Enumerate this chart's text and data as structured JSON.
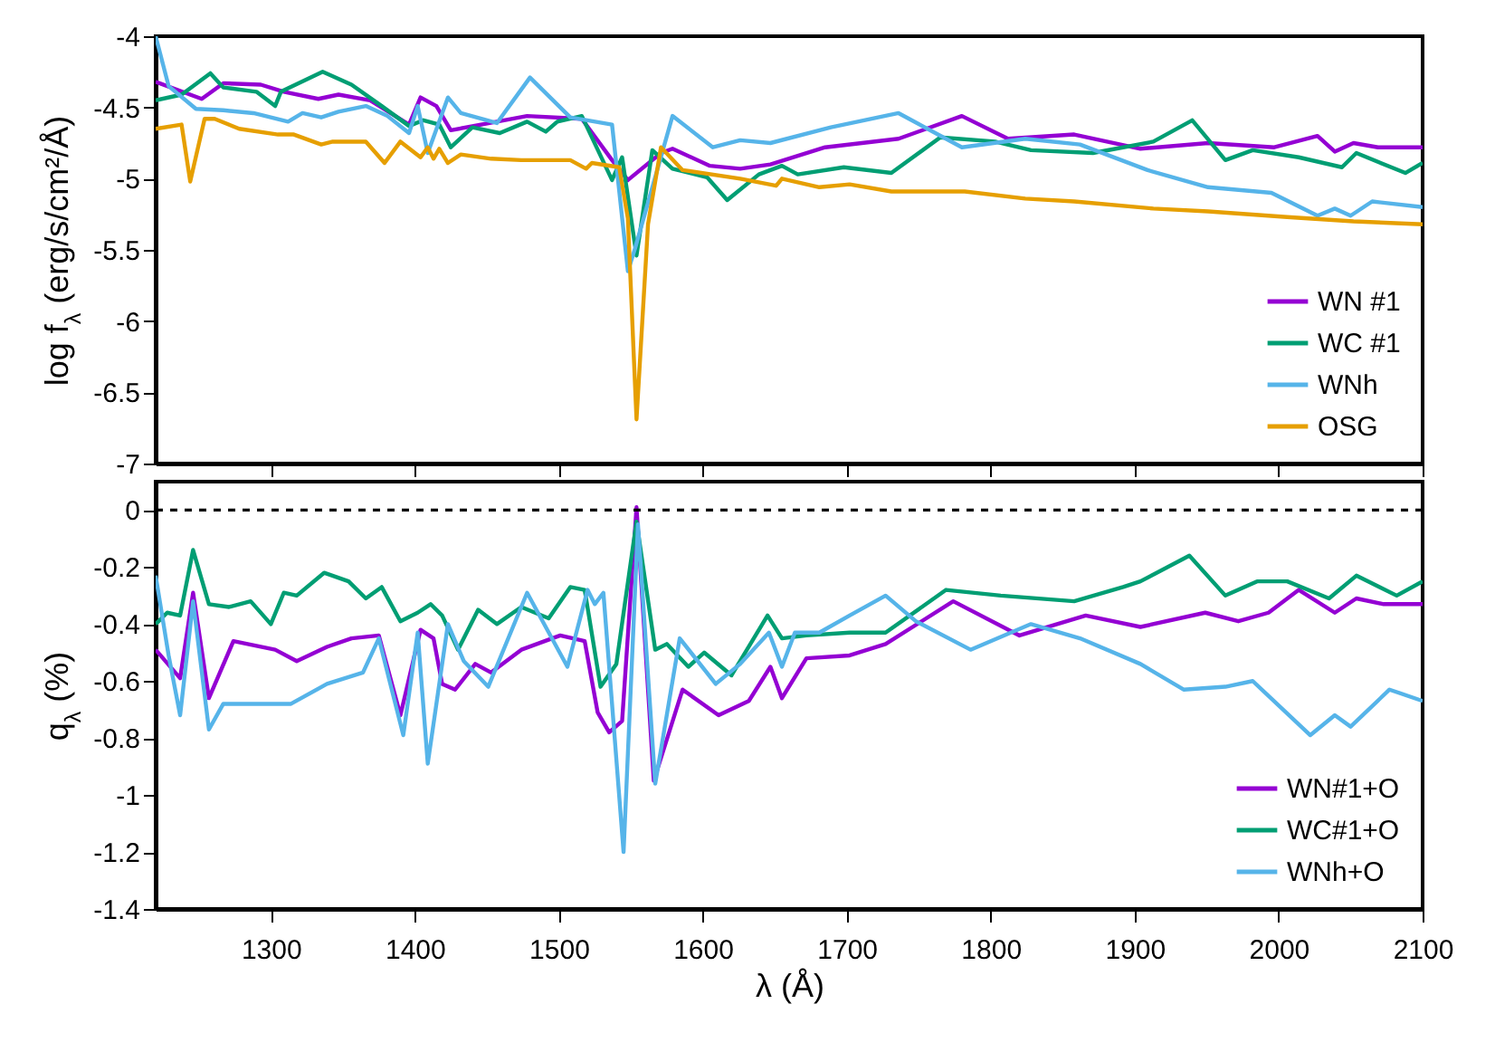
{
  "chart_data": [
    {
      "type": "line",
      "ylabel": "log f$_{λ}$ (erg/s/cm²/Å)",
      "xlim": [
        1220,
        2100
      ],
      "xticks": [
        1300,
        1400,
        1500,
        1600,
        1700,
        1800,
        1900,
        2000,
        2100
      ],
      "ylim": [
        -7,
        -4
      ],
      "yticks": [
        -7,
        -6.5,
        -6,
        -5.5,
        -5,
        -4.5,
        -4
      ],
      "tick_labels": "y",
      "grid": false,
      "legend": "bottom right",
      "line_style": "solid",
      "series": [
        {
          "name": "WN #1",
          "color": "#9400d3",
          "x": [
            1220,
            1252,
            1267,
            1293,
            1309,
            1333,
            1347,
            1369,
            1396,
            1404,
            1415,
            1425,
            1457,
            1478,
            1516,
            1537,
            1548,
            1571,
            1579,
            1605,
            1626,
            1647,
            1685,
            1736,
            1780,
            1812,
            1858,
            1904,
            1951,
            1997,
            2027,
            2039,
            2052,
            2069,
            2100
          ],
          "values": [
            -4.32,
            -4.44,
            -4.33,
            -4.34,
            -4.39,
            -4.44,
            -4.41,
            -4.45,
            -4.62,
            -4.43,
            -4.49,
            -4.66,
            -4.6,
            -4.56,
            -4.58,
            -4.87,
            -5.01,
            -4.82,
            -4.79,
            -4.91,
            -4.93,
            -4.9,
            -4.78,
            -4.72,
            -4.56,
            -4.72,
            -4.69,
            -4.79,
            -4.75,
            -4.78,
            -4.7,
            -4.81,
            -4.75,
            -4.78,
            -4.78
          ]
        },
        {
          "name": "WC #1",
          "color": "#009e73",
          "x": [
            1220,
            1238,
            1258,
            1267,
            1290,
            1303,
            1307,
            1336,
            1356,
            1377,
            1396,
            1406,
            1417,
            1425,
            1440,
            1459,
            1478,
            1491,
            1499,
            1516,
            1537,
            1544,
            1554,
            1565,
            1579,
            1603,
            1617,
            1639,
            1655,
            1666,
            1698,
            1731,
            1765,
            1803,
            1828,
            1871,
            1913,
            1940,
            1963,
            1982,
            2014,
            2044,
            2054,
            2088,
            2100
          ],
          "values": [
            -4.45,
            -4.41,
            -4.26,
            -4.36,
            -4.39,
            -4.49,
            -4.39,
            -4.25,
            -4.34,
            -4.49,
            -4.63,
            -4.59,
            -4.62,
            -4.78,
            -4.64,
            -4.68,
            -4.6,
            -4.67,
            -4.6,
            -4.56,
            -5.01,
            -4.85,
            -5.54,
            -4.8,
            -4.93,
            -4.99,
            -5.15,
            -4.97,
            -4.91,
            -4.97,
            -4.92,
            -4.96,
            -4.71,
            -4.74,
            -4.8,
            -4.82,
            -4.74,
            -4.59,
            -4.87,
            -4.8,
            -4.85,
            -4.92,
            -4.82,
            -4.96,
            -4.89
          ]
        },
        {
          "name": "WNh",
          "color": "#56b4e9",
          "x": [
            1220,
            1229,
            1248,
            1267,
            1288,
            1312,
            1322,
            1335,
            1347,
            1366,
            1381,
            1396,
            1402,
            1409,
            1423,
            1432,
            1457,
            1480,
            1508,
            1537,
            1548,
            1553,
            1579,
            1607,
            1626,
            1647,
            1689,
            1736,
            1780,
            1824,
            1862,
            1909,
            1951,
            1995,
            2027,
            2039,
            2050,
            2065,
            2100
          ],
          "values": [
            -4.0,
            -4.35,
            -4.51,
            -4.52,
            -4.54,
            -4.6,
            -4.54,
            -4.57,
            -4.53,
            -4.49,
            -4.56,
            -4.68,
            -4.49,
            -4.82,
            -4.43,
            -4.54,
            -4.61,
            -4.29,
            -4.57,
            -4.62,
            -5.65,
            -5.49,
            -4.56,
            -4.78,
            -4.73,
            -4.75,
            -4.64,
            -4.54,
            -4.78,
            -4.72,
            -4.76,
            -4.94,
            -5.06,
            -5.1,
            -5.26,
            -5.21,
            -5.26,
            -5.16,
            -5.2
          ]
        },
        {
          "name": "OSG",
          "color": "#e69f00",
          "x": [
            1220,
            1238,
            1244,
            1254,
            1261,
            1278,
            1305,
            1316,
            1335,
            1343,
            1366,
            1379,
            1390,
            1404,
            1409,
            1413,
            1417,
            1423,
            1432,
            1453,
            1474,
            1508,
            1519,
            1523,
            1542,
            1548,
            1554,
            1562,
            1571,
            1586,
            1626,
            1651,
            1655,
            1681,
            1702,
            1731,
            1782,
            1824,
            1858,
            1913,
            1951,
            2006,
            2052,
            2100
          ],
          "values": [
            -4.65,
            -4.62,
            -5.02,
            -4.58,
            -4.58,
            -4.65,
            -4.69,
            -4.69,
            -4.76,
            -4.74,
            -4.74,
            -4.89,
            -4.74,
            -4.85,
            -4.78,
            -4.86,
            -4.79,
            -4.89,
            -4.83,
            -4.86,
            -4.87,
            -4.87,
            -4.93,
            -4.89,
            -4.92,
            -5.28,
            -6.69,
            -5.32,
            -4.78,
            -4.94,
            -5.0,
            -5.05,
            -5.0,
            -5.06,
            -5.04,
            -5.09,
            -5.09,
            -5.14,
            -5.16,
            -5.21,
            -5.23,
            -5.27,
            -5.3,
            -5.32
          ]
        }
      ]
    },
    {
      "type": "line",
      "xlabel": "λ (Å)",
      "ylabel": "q$_{λ}$ (%)",
      "xlim": [
        1220,
        2100
      ],
      "xticks": [
        1300,
        1400,
        1500,
        1600,
        1700,
        1800,
        1900,
        2000,
        2100
      ],
      "ylim": [
        -1.4,
        0.1
      ],
      "yticks": [
        -1.4,
        -1.2,
        -1,
        -0.8,
        -0.6,
        -0.4,
        -0.2,
        0
      ],
      "grid": false,
      "legend": "bottom right",
      "line_style": "solid",
      "ref_lines": [
        {
          "axis": "y",
          "value": 0,
          "color": "#000000",
          "line_style": "dashed"
        }
      ],
      "series": [
        {
          "name": "WN#1+O",
          "color": "#9400d3",
          "x": [
            1220,
            1237,
            1246,
            1257,
            1274,
            1303,
            1318,
            1339,
            1356,
            1375,
            1390,
            1404,
            1413,
            1419,
            1428,
            1442,
            1453,
            1474,
            1501,
            1518,
            1527,
            1535,
            1544,
            1554,
            1566,
            1586,
            1611,
            1632,
            1647,
            1655,
            1672,
            1702,
            1727,
            1774,
            1820,
            1866,
            1904,
            1949,
            1972,
            1993,
            2014,
            2039,
            2054,
            2073,
            2100
          ],
          "values": [
            -0.49,
            -0.59,
            -0.29,
            -0.66,
            -0.46,
            -0.49,
            -0.53,
            -0.48,
            -0.45,
            -0.44,
            -0.72,
            -0.42,
            -0.45,
            -0.61,
            -0.63,
            -0.54,
            -0.57,
            -0.49,
            -0.44,
            -0.46,
            -0.71,
            -0.78,
            -0.74,
            0.01,
            -0.95,
            -0.63,
            -0.72,
            -0.67,
            -0.55,
            -0.66,
            -0.52,
            -0.51,
            -0.47,
            -0.32,
            -0.44,
            -0.37,
            -0.41,
            -0.36,
            -0.39,
            -0.36,
            -0.28,
            -0.36,
            -0.31,
            -0.33,
            -0.33
          ]
        },
        {
          "name": "WC#1+O",
          "color": "#009e73",
          "x": [
            1220,
            1228,
            1237,
            1246,
            1257,
            1271,
            1286,
            1300,
            1309,
            1318,
            1337,
            1354,
            1366,
            1377,
            1390,
            1402,
            1411,
            1419,
            1430,
            1444,
            1457,
            1474,
            1493,
            1508,
            1518,
            1529,
            1540,
            1554,
            1567,
            1575,
            1590,
            1601,
            1620,
            1645,
            1655,
            1672,
            1702,
            1727,
            1769,
            1807,
            1858,
            1892,
            1904,
            1938,
            1963,
            1985,
            2006,
            2035,
            2054,
            2082,
            2100
          ],
          "values": [
            -0.4,
            -0.36,
            -0.37,
            -0.14,
            -0.33,
            -0.34,
            -0.32,
            -0.4,
            -0.29,
            -0.3,
            -0.22,
            -0.25,
            -0.31,
            -0.27,
            -0.39,
            -0.36,
            -0.33,
            -0.37,
            -0.49,
            -0.35,
            -0.4,
            -0.34,
            -0.38,
            -0.27,
            -0.28,
            -0.62,
            -0.54,
            -0.04,
            -0.49,
            -0.47,
            -0.55,
            -0.5,
            -0.58,
            -0.37,
            -0.45,
            -0.44,
            -0.43,
            -0.43,
            -0.28,
            -0.3,
            -0.32,
            -0.27,
            -0.25,
            -0.16,
            -0.3,
            -0.25,
            -0.25,
            -0.31,
            -0.23,
            -0.3,
            -0.25
          ]
        },
        {
          "name": "WNh+O",
          "color": "#56b4e9",
          "x": [
            1220,
            1229,
            1237,
            1246,
            1257,
            1267,
            1303,
            1314,
            1339,
            1364,
            1375,
            1392,
            1402,
            1409,
            1423,
            1434,
            1451,
            1478,
            1506,
            1520,
            1525,
            1531,
            1545,
            1555,
            1567,
            1584,
            1609,
            1626,
            1646,
            1655,
            1664,
            1681,
            1702,
            1727,
            1748,
            1786,
            1828,
            1862,
            1904,
            1934,
            1963,
            1982,
            2022,
            2039,
            2050,
            2077,
            2100
          ],
          "values": [
            -0.23,
            -0.51,
            -0.72,
            -0.32,
            -0.77,
            -0.68,
            -0.68,
            -0.68,
            -0.61,
            -0.57,
            -0.45,
            -0.79,
            -0.43,
            -0.89,
            -0.4,
            -0.53,
            -0.62,
            -0.29,
            -0.55,
            -0.28,
            -0.33,
            -0.29,
            -1.2,
            -0.05,
            -0.96,
            -0.45,
            -0.61,
            -0.54,
            -0.43,
            -0.55,
            -0.43,
            -0.43,
            -0.37,
            -0.3,
            -0.39,
            -0.49,
            -0.4,
            -0.45,
            -0.54,
            -0.63,
            -0.62,
            -0.6,
            -0.79,
            -0.72,
            -0.76,
            -0.63,
            -0.67
          ]
        }
      ]
    }
  ]
}
